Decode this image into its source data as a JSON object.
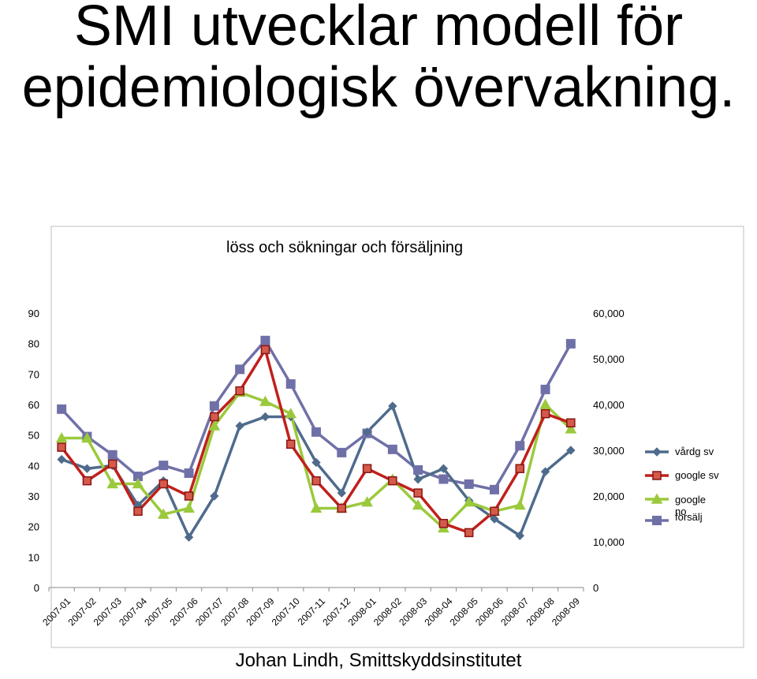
{
  "slide": {
    "title_line1": "SMI utvecklar modell för",
    "title_line2": "epidemiologisk övervakning.",
    "footer": "Johan Lindh, Smittskyddsinstitutet"
  },
  "chart_data": {
    "type": "line",
    "title": "löss och sökningar och försäljning",
    "categories": [
      "2007-01",
      "2007-02",
      "2007-03",
      "2007-04",
      "2007-05",
      "2007-06",
      "2007-07",
      "2007-08",
      "2007-09",
      "2007-10",
      "2007-11",
      "2007-12",
      "2008-01",
      "2008-02",
      "2008-03",
      "2008-04",
      "2008-05",
      "2008-06",
      "2008-07",
      "2008-08",
      "2008-09"
    ],
    "left_axis": {
      "ylim": [
        0,
        90
      ],
      "ticks": [
        "0",
        "10",
        "20",
        "30",
        "40",
        "50",
        "60",
        "70",
        "80",
        "90"
      ]
    },
    "right_axis": {
      "ylim": [
        0,
        60000
      ],
      "ticks": [
        "0",
        "10,000",
        "20,000",
        "30,000",
        "40,000",
        "50,000",
        "60,000"
      ]
    },
    "legend_position": "right",
    "series": [
      {
        "name": "vårdg sv",
        "axis": "left",
        "color": "#4f6b8c",
        "marker": "diamond",
        "values": [
          42,
          39,
          40,
          27,
          35,
          16.5,
          30,
          53,
          56,
          56,
          41,
          31,
          51,
          59.5,
          35.5,
          39,
          28.5,
          22.5,
          17,
          38,
          45
        ]
      },
      {
        "name": "google sv",
        "axis": "left",
        "color": "#c0201c",
        "marker": "square",
        "values": [
          46,
          35,
          40.5,
          25,
          34,
          30,
          56,
          64.5,
          78,
          47,
          35,
          26,
          39,
          35,
          31,
          21,
          18,
          25,
          39,
          57,
          54
        ]
      },
      {
        "name": "google no",
        "axis": "left",
        "color": "#9bc93c",
        "marker": "triangle",
        "values": [
          49,
          49,
          34,
          34,
          24,
          26,
          53,
          64,
          61,
          57,
          26,
          26,
          28,
          35.5,
          27,
          19.5,
          28,
          25,
          27,
          60,
          52
        ]
      },
      {
        "name": "försälj sv",
        "axis": "right",
        "color": "#7070a8",
        "marker": "square",
        "values": [
          39000,
          33000,
          29000,
          24300,
          26700,
          25000,
          39700,
          47700,
          54000,
          44500,
          34000,
          29500,
          33700,
          30200,
          25700,
          23700,
          22600,
          21400,
          31000,
          43300,
          53300
        ]
      }
    ]
  }
}
